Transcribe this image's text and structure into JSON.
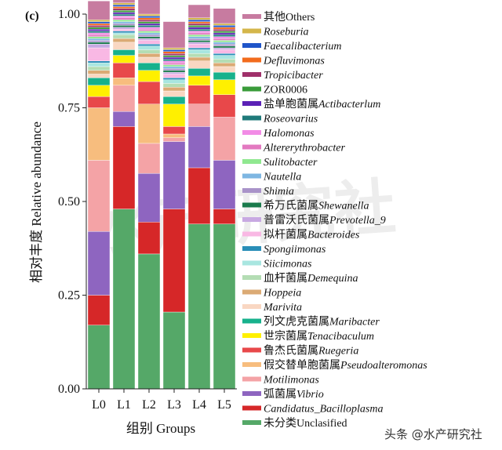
{
  "chart_data": {
    "type": "stacked-bar",
    "panel_label": "(c)",
    "title": "",
    "xlabel": "组别 Groups",
    "ylabel": "相对丰度 Relative abundance",
    "ylim": [
      0,
      1
    ],
    "yticks": [
      "0.00",
      "0.25",
      "0.50",
      "0.75",
      "1.00"
    ],
    "ytick_values": [
      0,
      0.25,
      0.5,
      0.75,
      1.0
    ],
    "categories": [
      "L0",
      "L1",
      "L2",
      "L3",
      "L4",
      "L5"
    ],
    "series": [
      {
        "name": "未分类Unclasified",
        "color": "#55A868",
        "values": [
          0.17,
          0.48,
          0.36,
          0.205,
          0.44,
          0.44
        ]
      },
      {
        "name": "Candidatus_Bacilloplasma",
        "color": "#D62728",
        "values": [
          0.08,
          0.22,
          0.085,
          0.275,
          0.15,
          0.04
        ]
      },
      {
        "name": "弧菌属Vibrio",
        "color": "#8E65C0",
        "values": [
          0.17,
          0.04,
          0.13,
          0.18,
          0.11,
          0.13
        ]
      },
      {
        "name": "Motilimonas",
        "color": "#F4A3A6",
        "values": [
          0.19,
          0.07,
          0.08,
          0.01,
          0.06,
          0.115
        ]
      },
      {
        "name": "假交替单胞菌属Pseudoalteromonas",
        "color": "#F7BD7E",
        "values": [
          0.14,
          0.02,
          0.105,
          0.01,
          0.0,
          0.0
        ]
      },
      {
        "name": "鲁杰氏菌属Ruegeria",
        "color": "#E8484A",
        "values": [
          0.03,
          0.04,
          0.06,
          0.02,
          0.05,
          0.06
        ]
      },
      {
        "name": "世宗菌属Tenacibaculum",
        "color": "#FFF000",
        "values": [
          0.03,
          0.02,
          0.03,
          0.06,
          0.025,
          0.04
        ]
      },
      {
        "name": "列文虎克菌属Maribacter",
        "color": "#17B18C",
        "values": [
          0.02,
          0.015,
          0.02,
          0.02,
          0.02,
          0.02
        ]
      },
      {
        "name": "Marivita",
        "color": "#F9D7C2",
        "values": [
          0.01,
          0.02,
          0.015,
          0.015,
          0.02,
          0.015
        ]
      },
      {
        "name": "Hoppeia",
        "color": "#DBAA74",
        "values": [
          0.01,
          0.01,
          0.01,
          0.01,
          0.01,
          0.01
        ]
      },
      {
        "name": "血杆菌属Demequina",
        "color": "#B4DDB4",
        "values": [
          0.01,
          0.01,
          0.01,
          0.01,
          0.01,
          0.01
        ]
      },
      {
        "name": "Siicimonas",
        "color": "#A8E6E0",
        "values": [
          0.01,
          0.005,
          0.01,
          0.01,
          0.01,
          0.01
        ]
      },
      {
        "name": "Spongiimonas",
        "color": "#2A8EB8",
        "values": [
          0.005,
          0.005,
          0.005,
          0.005,
          0.005,
          0.005
        ]
      },
      {
        "name": "拟杆菌属Bacteroides",
        "color": "#F9B8E4",
        "values": [
          0.035,
          0.005,
          0.01,
          0.01,
          0.01,
          0.01
        ]
      },
      {
        "name": "普雷沃氏菌属Prevotella_9",
        "color": "#C8A9E2",
        "values": [
          0.01,
          0.005,
          0.005,
          0.005,
          0.005,
          0.005
        ]
      },
      {
        "name": "希万氏菌属Shewanella",
        "color": "#1A7A4C",
        "values": [
          0.005,
          0.005,
          0.005,
          0.005,
          0.005,
          0.005
        ]
      },
      {
        "name": "Shimia",
        "color": "#A993C9",
        "values": [
          0.005,
          0.005,
          0.005,
          0.005,
          0.005,
          0.005
        ]
      },
      {
        "name": "Nautella",
        "color": "#7EB6E2",
        "values": [
          0.005,
          0.005,
          0.005,
          0.005,
          0.005,
          0.005
        ]
      },
      {
        "name": "Sulitobacter",
        "color": "#90E890",
        "values": [
          0.005,
          0.005,
          0.005,
          0.005,
          0.005,
          0.005
        ]
      },
      {
        "name": "Altererythrobacter",
        "color": "#E379C0",
        "values": [
          0.005,
          0.005,
          0.005,
          0.005,
          0.005,
          0.005
        ]
      },
      {
        "name": "Halomonas",
        "color": "#F28BE6",
        "values": [
          0.005,
          0.005,
          0.005,
          0.005,
          0.005,
          0.005
        ]
      },
      {
        "name": "Roseovarius",
        "color": "#1F7A7A",
        "values": [
          0.005,
          0.005,
          0.005,
          0.005,
          0.005,
          0.005
        ]
      },
      {
        "name": "盐单胞菌属Actibacterlum",
        "color": "#5B21B6",
        "values": [
          0.005,
          0.005,
          0.005,
          0.005,
          0.005,
          0.005
        ]
      },
      {
        "name": "ZOR0006",
        "color": "#3A9B3A",
        "values": [
          0.005,
          0.005,
          0.005,
          0.005,
          0.005,
          0.005
        ]
      },
      {
        "name": "Tropicibacter",
        "color": "#A0306A",
        "values": [
          0.005,
          0.005,
          0.005,
          0.005,
          0.005,
          0.005
        ]
      },
      {
        "name": "Defluvimonas",
        "color": "#F26B1D",
        "values": [
          0.005,
          0.005,
          0.005,
          0.005,
          0.005,
          0.005
        ]
      },
      {
        "name": "Faecalibacterium",
        "color": "#1F55C9",
        "values": [
          0.005,
          0.005,
          0.005,
          0.005,
          0.005,
          0.005
        ]
      },
      {
        "name": "Roseburia",
        "color": "#D4B64A",
        "values": [
          0.005,
          0.005,
          0.005,
          0.005,
          0.005,
          0.005
        ]
      },
      {
        "name": "其他Others",
        "color": "#C77BA0",
        "values": [
          0.05,
          0.04,
          0.04,
          0.07,
          0.035,
          0.04
        ]
      }
    ],
    "legend_position": "right",
    "legend_order": "top-to-bottom reversed stack order"
  },
  "legend_labels": [
    {
      "cn": "其他",
      "en": "Others",
      "italic": false
    },
    {
      "cn": "",
      "en": "Roseburia",
      "italic": true
    },
    {
      "cn": "",
      "en": "Faecalibacterium",
      "italic": true
    },
    {
      "cn": "",
      "en": "Defluvimonas",
      "italic": true
    },
    {
      "cn": "",
      "en": "Tropicibacter",
      "italic": true
    },
    {
      "cn": "",
      "en": "ZOR0006",
      "italic": false
    },
    {
      "cn": "盐单胞菌属",
      "en": "Actibacterlum",
      "italic": true
    },
    {
      "cn": "",
      "en": "Roseovarius",
      "italic": true
    },
    {
      "cn": "",
      "en": "Halomonas",
      "italic": true
    },
    {
      "cn": "",
      "en": "Altererythrobacter",
      "italic": true
    },
    {
      "cn": "",
      "en": "Sulitobacter",
      "italic": true
    },
    {
      "cn": "",
      "en": "Nautella",
      "italic": true
    },
    {
      "cn": "",
      "en": "Shimia",
      "italic": true
    },
    {
      "cn": "希万氏菌属",
      "en": "Shewanella",
      "italic": true
    },
    {
      "cn": "普雷沃氏菌属",
      "en": "Prevotella_9",
      "italic": true
    },
    {
      "cn": "拟杆菌属",
      "en": "Bacteroides",
      "italic": true
    },
    {
      "cn": "",
      "en": "Spongiimonas",
      "italic": true
    },
    {
      "cn": "",
      "en": "Siicimonas",
      "italic": true
    },
    {
      "cn": "血杆菌属",
      "en": "Demequina",
      "italic": true
    },
    {
      "cn": "",
      "en": "Hoppeia",
      "italic": true
    },
    {
      "cn": "",
      "en": "Marivita",
      "italic": true
    },
    {
      "cn": "列文虎克菌属",
      "en": "Maribacter",
      "italic": true
    },
    {
      "cn": "世宗菌属",
      "en": "Tenacibaculum",
      "italic": true
    },
    {
      "cn": "鲁杰氏菌属",
      "en": "Ruegeria",
      "italic": true
    },
    {
      "cn": "假交替单胞菌属",
      "en": "Pseudoalteromonas",
      "italic": true
    },
    {
      "cn": "",
      "en": "Motilimonas",
      "italic": true
    },
    {
      "cn": "弧菌属",
      "en": "Vibrio",
      "italic": true
    },
    {
      "cn": "",
      "en": "Candidatus_Bacilloplasma",
      "italic": true
    },
    {
      "cn": "未分类",
      "en": "Unclasified",
      "italic": false
    }
  ],
  "watermark": {
    "text": "头条 @水产研究社",
    "logo_text": "水产研究社"
  }
}
